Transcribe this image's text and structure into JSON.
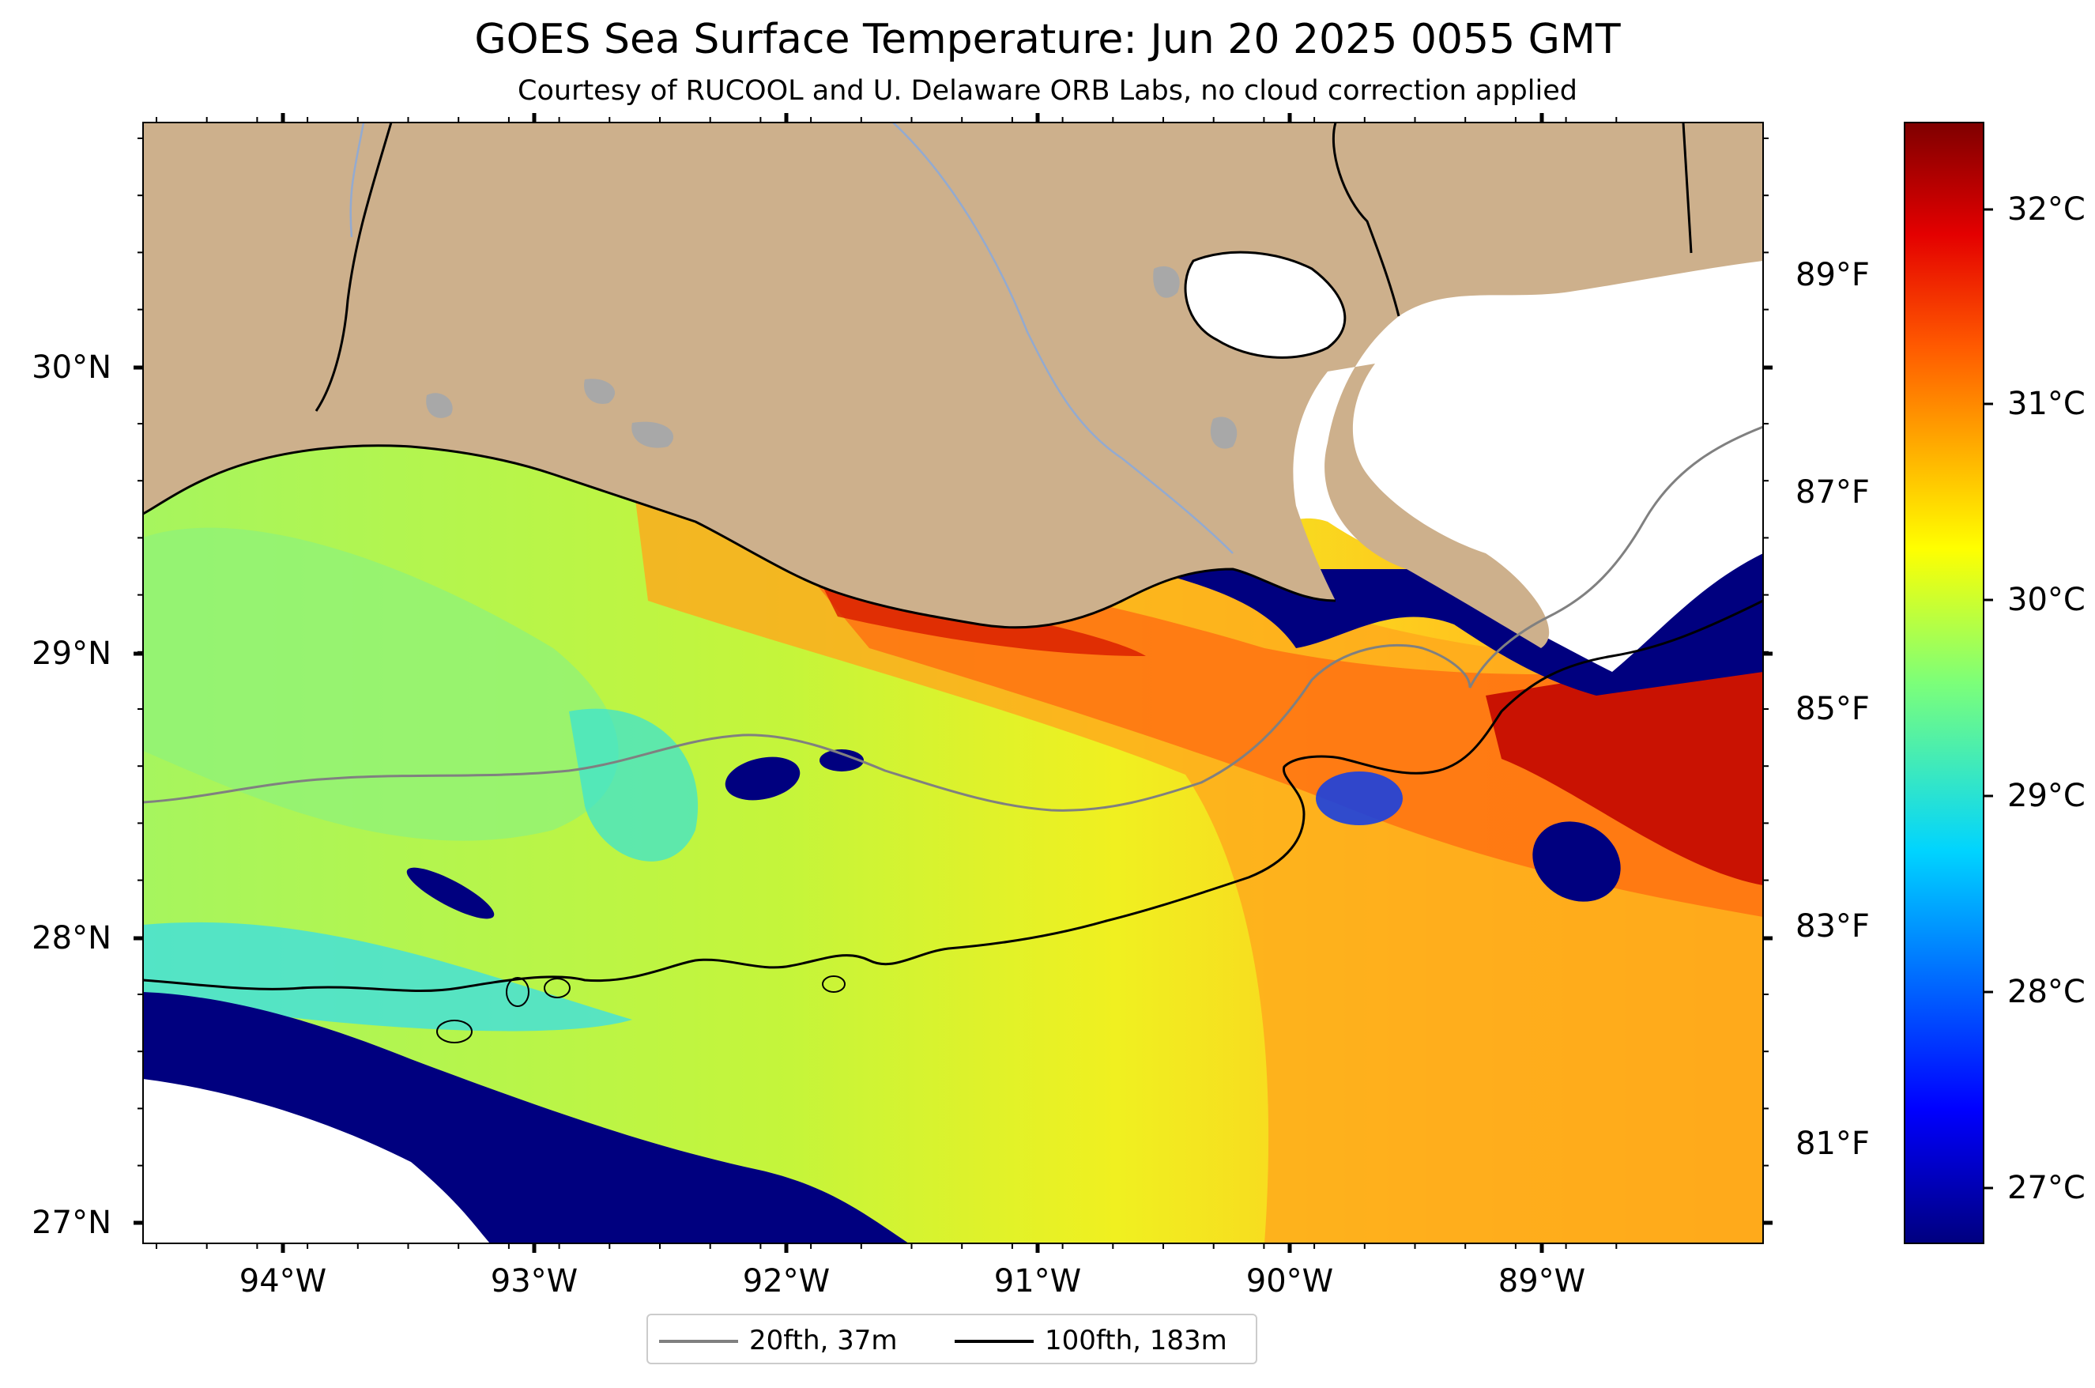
{
  "title": "GOES Sea Surface Temperature: Jun 20 2025 0055 GMT",
  "subtitle": "Courtesy of RUCOOL and U. Delaware ORB Labs, no cloud correction applied",
  "map": {
    "extent": {
      "lon_min": -94.55,
      "lon_max": -88.12,
      "lat_min": 26.93,
      "lat_max": 30.85
    },
    "lat_labels": [
      "30°N",
      "29°N",
      "28°N",
      "27°N"
    ],
    "lon_labels": [
      "94°W",
      "93°W",
      "92°W",
      "91°W",
      "90°W",
      "89°W"
    ],
    "land_color": "#cdb08c",
    "lake_color": "#a8a8a8",
    "no_data_color": "#ffffff"
  },
  "colorbar": {
    "colormap": "jet",
    "celsius_labels": [
      "32°C",
      "31°C",
      "30°C",
      "29°C",
      "28°C",
      "27°C"
    ],
    "fahrenheit_labels": [
      "89°F",
      "87°F",
      "85°F",
      "83°F",
      "81°F"
    ],
    "range_c": [
      26.7,
      32.4
    ]
  },
  "legend": {
    "items": [
      {
        "label": "20fth, 37m",
        "color": "#808080"
      },
      {
        "label": "100fth, 183m",
        "color": "#000000"
      }
    ]
  }
}
